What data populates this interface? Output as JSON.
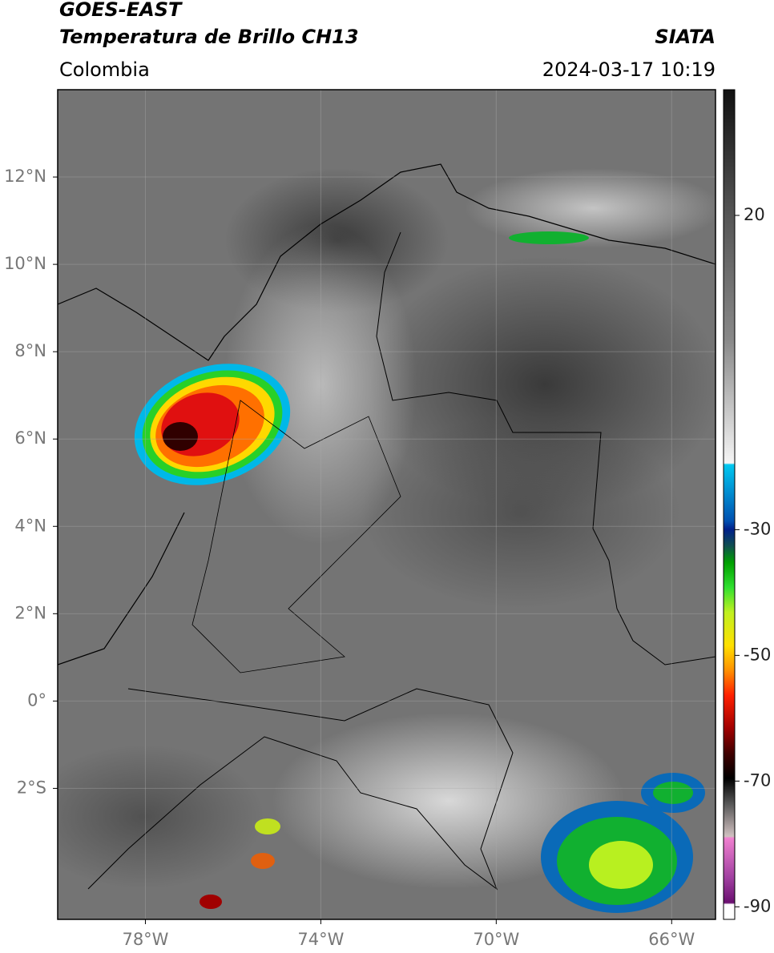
{
  "header": {
    "satellite": "GOES-EAST",
    "product": "Temperatura de Brillo CH13",
    "source": "SIATA",
    "region": "Colombia",
    "datetime": "2024-03-17 10:19"
  },
  "map": {
    "xlim": [
      -80,
      -65
    ],
    "ylim": [
      -5,
      14
    ],
    "xticks": [
      {
        "value": -78,
        "label": "78°W"
      },
      {
        "value": -74,
        "label": "74°W"
      },
      {
        "value": -70,
        "label": "70°W"
      },
      {
        "value": -66,
        "label": "66°W"
      }
    ],
    "yticks": [
      {
        "value": 12,
        "label": "12°N"
      },
      {
        "value": 10,
        "label": "10°N"
      },
      {
        "value": 8,
        "label": "8°N"
      },
      {
        "value": 6,
        "label": "6°N"
      },
      {
        "value": 4,
        "label": "4°N"
      },
      {
        "value": 2,
        "label": "2°N"
      },
      {
        "value": 0,
        "label": "0°"
      },
      {
        "value": -2,
        "label": "2°S"
      }
    ],
    "grid": true
  },
  "colorbar": {
    "lim": [
      -92,
      40
    ],
    "ticks": [
      20,
      -30,
      -50,
      -70,
      -90
    ]
  }
}
